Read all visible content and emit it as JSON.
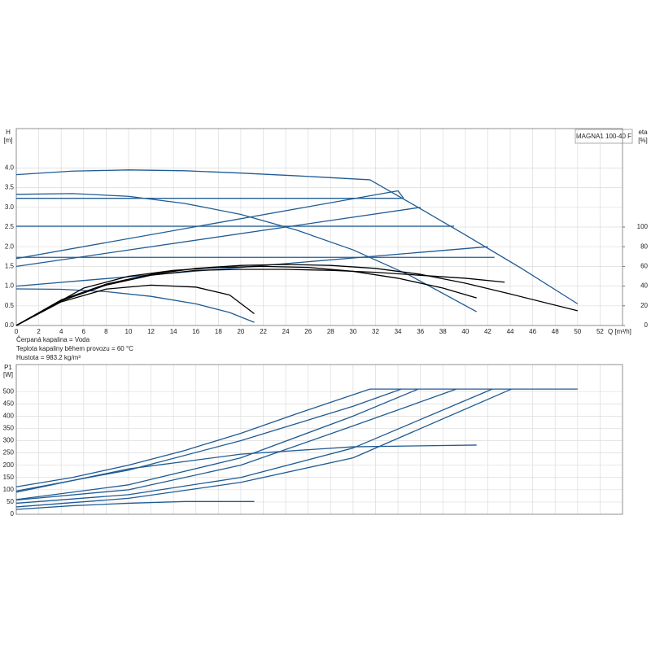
{
  "chart_data": [
    {
      "type": "line",
      "title": "MAGNA1 100-40 F",
      "y_label": "H",
      "y_unit": "[m]",
      "y2_label": "eta",
      "y2_unit": "[%]",
      "x_label": "Q [m³/h]",
      "notes": [
        "Čerpaná kapalina = Voda",
        "Teplota kapaliny během provozu = 60 °C",
        "Hustota = 983.2 kg/m³"
      ],
      "xlim": [
        0,
        54
      ],
      "xticks": [
        0,
        2,
        4,
        6,
        8,
        10,
        12,
        14,
        16,
        18,
        20,
        22,
        24,
        26,
        28,
        30,
        32,
        34,
        36,
        38,
        40,
        42,
        44,
        46,
        48,
        50,
        52
      ],
      "ylim": [
        0,
        5
      ],
      "yticks": [
        {
          "value": 0,
          "label": "0.0"
        },
        {
          "value": 0.5,
          "label": "0.5"
        },
        {
          "value": 1,
          "label": "1.0"
        },
        {
          "value": 1.5,
          "label": "1.5"
        },
        {
          "value": 2,
          "label": "2.0"
        },
        {
          "value": 2.5,
          "label": "2.5"
        },
        {
          "value": 3,
          "label": "3.0"
        },
        {
          "value": 3.5,
          "label": "3.5"
        },
        {
          "value": 4,
          "label": "4.0"
        }
      ],
      "y2lim": [
        0,
        200
      ],
      "y2ticks": [
        0,
        20,
        40,
        60,
        80,
        100
      ],
      "grid": true,
      "series": [
        {
          "color": "#1f5b94",
          "x": [
            0,
            5,
            10,
            15,
            20,
            25,
            31.5,
            35,
            40,
            45,
            50
          ],
          "values": [
            3.83,
            3.92,
            3.95,
            3.93,
            3.87,
            3.8,
            3.7,
            3.13,
            2.3,
            1.45,
            0.55
          ]
        },
        {
          "color": "#1f5b94",
          "x": [
            0,
            5,
            10,
            15,
            20,
            25,
            30,
            35,
            41
          ],
          "values": [
            3.33,
            3.35,
            3.28,
            3.1,
            2.82,
            2.42,
            1.92,
            1.28,
            0.35
          ]
        },
        {
          "color": "#1f5b94",
          "x": [
            0,
            4,
            8,
            12,
            16,
            19,
            21.2
          ],
          "values": [
            0.93,
            0.92,
            0.86,
            0.74,
            0.55,
            0.33,
            0.08
          ]
        },
        {
          "color": "#1f5b94",
          "x": [
            0,
            34.5
          ],
          "values": [
            3.23,
            3.23
          ]
        },
        {
          "color": "#1f5b94",
          "x": [
            0,
            39
          ],
          "values": [
            2.52,
            2.52
          ]
        },
        {
          "color": "#1f5b94",
          "x": [
            0,
            42.6
          ],
          "values": [
            1.73,
            1.73
          ]
        },
        {
          "color": "#1f5b94",
          "x": [
            0,
            34,
            34.5
          ],
          "values": [
            1.7,
            3.42,
            3.23
          ]
        },
        {
          "color": "#1f5b94",
          "x": [
            0,
            36
          ],
          "values": [
            1.5,
            3.0
          ]
        },
        {
          "color": "#1f5b94",
          "x": [
            0,
            42
          ],
          "values": [
            1.0,
            2.0
          ]
        },
        {
          "color": "#000000",
          "axis": "y2",
          "x": [
            0,
            4,
            8,
            12,
            16,
            20,
            24,
            28,
            32,
            36,
            40,
            44,
            50
          ],
          "values": [
            0,
            26,
            42,
            52,
            58,
            61,
            62,
            61,
            58,
            52,
            43,
            32,
            15
          ]
        },
        {
          "color": "#000000",
          "axis": "y2",
          "x": [
            0,
            6,
            10,
            14,
            18,
            22,
            26,
            30,
            34,
            38,
            41
          ],
          "values": [
            0,
            38,
            50,
            56,
            59,
            60,
            59,
            55,
            48,
            38,
            28
          ]
        },
        {
          "color": "#000000",
          "axis": "y2",
          "x": [
            0,
            4,
            8,
            12,
            16,
            20,
            24,
            28,
            32,
            36,
            40,
            43.5
          ],
          "values": [
            0,
            25,
            41,
            51,
            56,
            57,
            57,
            56,
            54,
            51,
            48,
            44
          ]
        },
        {
          "color": "#000000",
          "axis": "y2",
          "x": [
            0,
            4,
            8,
            12,
            16,
            19,
            21.2
          ],
          "values": [
            0,
            24,
            37,
            41,
            39,
            31,
            12
          ]
        }
      ]
    },
    {
      "type": "line",
      "y_label": "P1",
      "y_unit": "[W]",
      "xlim": [
        0,
        54
      ],
      "ylim": [
        0,
        610
      ],
      "yticks": [
        0,
        50,
        100,
        150,
        200,
        250,
        300,
        350,
        400,
        450,
        500
      ],
      "grid": true,
      "series": [
        {
          "color": "#1f5b94",
          "x": [
            0,
            5,
            10,
            15,
            20,
            25,
            31.5,
            50
          ],
          "values": [
            112,
            150,
            200,
            260,
            330,
            410,
            510,
            510
          ]
        },
        {
          "color": "#1f5b94",
          "x": [
            0,
            10,
            20,
            30,
            34.3
          ],
          "values": [
            95,
            180,
            300,
            440,
            510
          ]
        },
        {
          "color": "#1f5b94",
          "x": [
            0,
            10,
            20,
            30,
            35.8
          ],
          "values": [
            60,
            120,
            230,
            400,
            510
          ]
        },
        {
          "color": "#1f5b94",
          "x": [
            0,
            10,
            20,
            30,
            39.2
          ],
          "values": [
            58,
            100,
            200,
            360,
            510
          ]
        },
        {
          "color": "#1f5b94",
          "x": [
            0,
            10,
            20,
            30,
            42.4
          ],
          "values": [
            45,
            80,
            150,
            270,
            510
          ]
        },
        {
          "color": "#1f5b94",
          "x": [
            0,
            10,
            20,
            30,
            44.1
          ],
          "values": [
            30,
            65,
            130,
            230,
            510
          ]
        },
        {
          "color": "#1f5b94",
          "x": [
            0,
            10,
            20,
            30,
            41
          ],
          "values": [
            90,
            185,
            245,
            275,
            282
          ]
        },
        {
          "color": "#1f5b94",
          "x": [
            0,
            5,
            10,
            15,
            21.2
          ],
          "values": [
            20,
            35,
            45,
            52,
            52
          ]
        }
      ]
    }
  ]
}
